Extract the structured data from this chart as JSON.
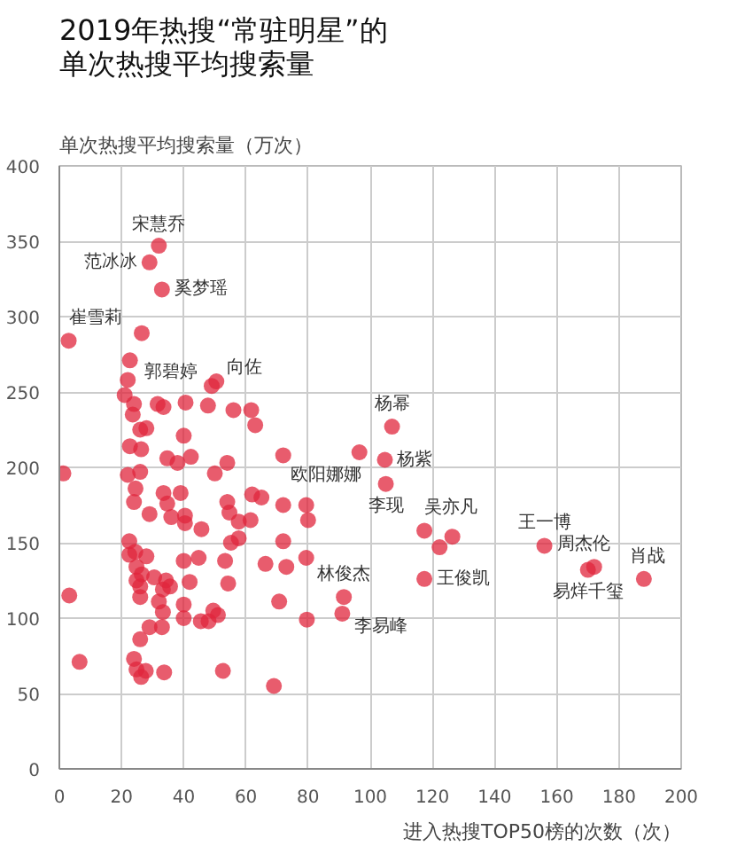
{
  "chart_data": {
    "type": "scatter",
    "title": "2019年热搜“常驻明星”的单次热搜平均搜索量",
    "ylabel": "单次热搜平均搜索量（万次）",
    "xlabel": "进入热搜TOP50榜的次数（次）",
    "xlim": [
      0,
      200
    ],
    "ylim": [
      0,
      400
    ],
    "xticks": [
      0,
      20,
      40,
      60,
      80,
      100,
      120,
      140,
      160,
      180,
      200
    ],
    "yticks": [
      0,
      50,
      100,
      150,
      200,
      250,
      300,
      350,
      400
    ],
    "grid": true,
    "marker": "circle",
    "series": [
      {
        "color": "#e0263c",
        "x": [
          32,
          29,
          33,
          3,
          50.5,
          49,
          72,
          96.5,
          107,
          104.7,
          105,
          117.4,
          122.3,
          126.4,
          117.4,
          91.5,
          91,
          156,
          170,
          172,
          188,
          26.5,
          22.7,
          22,
          21,
          24,
          23.6,
          26,
          28,
          22.7,
          26.3,
          31.6,
          33.5,
          40.6,
          47.8,
          56,
          61.7,
          63,
          34.7,
          38,
          42.3,
          40,
          50,
          54,
          1.3,
          22,
          26,
          24.5,
          24,
          29,
          33.5,
          34.7,
          39,
          36,
          40.4,
          40.4,
          45.7,
          54,
          54.7,
          57.7,
          61.5,
          65,
          62,
          72,
          79.4,
          80,
          22.5,
          24.4,
          22.5,
          28,
          24.8,
          26.5,
          30.5,
          34.3,
          35.6,
          33.3,
          24.8,
          26,
          26,
          32,
          33.3,
          40,
          44.8,
          41.9,
          53.3,
          54.3,
          55.2,
          57.7,
          66.3,
          72,
          73,
          79.4,
          40,
          40,
          45.5,
          48,
          49.5,
          51,
          70.7,
          79.6,
          29,
          33,
          26,
          3.2,
          6.5,
          24,
          24.8,
          27.8,
          26.3,
          33.7,
          52.6,
          69
        ],
        "values": [
          347,
          336,
          318,
          284,
          257,
          254,
          208,
          210,
          227,
          205,
          189,
          158,
          147,
          154,
          126,
          114,
          103,
          148,
          132,
          134,
          126,
          289,
          271,
          258,
          248,
          242,
          235,
          225,
          226,
          214,
          212,
          242,
          240,
          243,
          241,
          238,
          238,
          228,
          206,
          203,
          207,
          221,
          196,
          203,
          196,
          195,
          197,
          186,
          177,
          169,
          183,
          176,
          183,
          167,
          168,
          163,
          159,
          177,
          170,
          164,
          165,
          180,
          182,
          175,
          175,
          165,
          151,
          144,
          142,
          141,
          134,
          129,
          127,
          125,
          121,
          119,
          125,
          121,
          114,
          111,
          104,
          138,
          140,
          124,
          138,
          123,
          150,
          153,
          136,
          151,
          134,
          140,
          109,
          100,
          98,
          98,
          105,
          102,
          111,
          99,
          94,
          94,
          86,
          115,
          71,
          73,
          66,
          65,
          61,
          64,
          65,
          55
        ]
      }
    ],
    "annotations": [
      {
        "text": "宋慧乔",
        "x": 32,
        "y": 347
      },
      {
        "text": "范冰冰",
        "x": 29,
        "y": 336
      },
      {
        "text": "奚梦瑶",
        "x": 33,
        "y": 318
      },
      {
        "text": "崔雪莉",
        "x": 3,
        "y": 284
      },
      {
        "text": "向佐",
        "x": 50.5,
        "y": 257
      },
      {
        "text": "郭碧婷",
        "x": 49,
        "y": 254
      },
      {
        "text": "欧阳娜娜",
        "x": 72,
        "y": 208
      },
      {
        "text": "杨幂",
        "x": 107,
        "y": 227
      },
      {
        "text": "杨紫",
        "x": 104.7,
        "y": 205
      },
      {
        "text": "李现",
        "x": 105,
        "y": 189
      },
      {
        "text": "吴亦凡",
        "x": 117.4,
        "y": 158
      },
      {
        "text": "王俊凯",
        "x": 117.4,
        "y": 126
      },
      {
        "text": "林俊杰",
        "x": 91.5,
        "y": 114
      },
      {
        "text": "李易峰",
        "x": 91,
        "y": 103
      },
      {
        "text": "王一博",
        "x": 156,
        "y": 148
      },
      {
        "text": "易烊千玺",
        "x": 170,
        "y": 132
      },
      {
        "text": "周杰伦",
        "x": 172,
        "y": 134
      },
      {
        "text": "肖战",
        "x": 188,
        "y": 126
      }
    ]
  }
}
